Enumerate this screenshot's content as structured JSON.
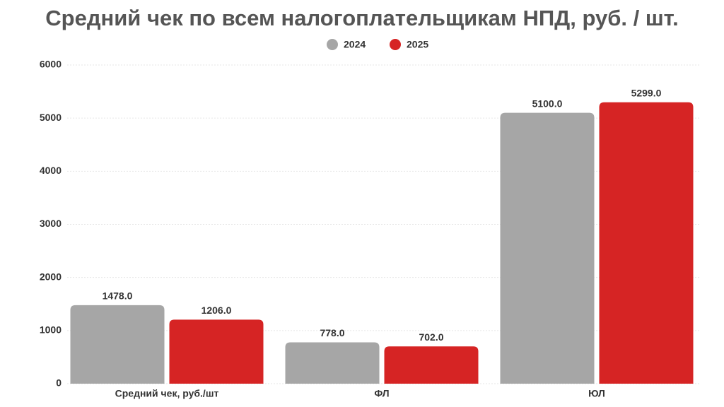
{
  "chart_data": {
    "type": "bar",
    "title": "Средний чек по всем налогоплательщикам НПД, руб. / шт.",
    "categories": [
      "Средний чек, руб./шт",
      "ФЛ",
      "ЮЛ"
    ],
    "series": [
      {
        "name": "2024",
        "color": "#a6a6a6",
        "values": [
          1478,
          778,
          5100
        ],
        "value_labels": [
          "1478.0",
          "778.0",
          "5100.0"
        ]
      },
      {
        "name": "2025",
        "color": "#d62424",
        "values": [
          1206,
          702,
          5299
        ],
        "value_labels": [
          "1206.0",
          "702.0",
          "5299.0"
        ]
      }
    ],
    "ylim": [
      0,
      6000
    ],
    "yticks": [
      0,
      1000,
      2000,
      3000,
      4000,
      5000,
      6000
    ],
    "grid": true,
    "legend": "top"
  }
}
